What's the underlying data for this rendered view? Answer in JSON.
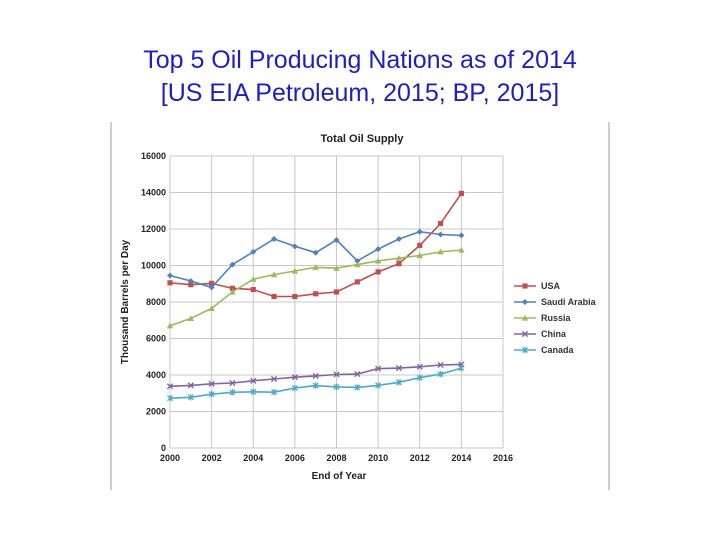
{
  "slide": {
    "title_line1": "Top 5 Oil Producing Nations as of 2014",
    "title_line2": "[US EIA Petroleum, 2015; BP, 2015]"
  },
  "chart_data": {
    "type": "line",
    "title": "Total Oil Supply",
    "xlabel": "End of Year",
    "ylabel": "Thousand Barrels per Day",
    "xlim": [
      2000,
      2016
    ],
    "ylim": [
      0,
      16000
    ],
    "x_ticks": [
      2000,
      2002,
      2004,
      2006,
      2008,
      2010,
      2012,
      2014,
      2016
    ],
    "y_ticks": [
      0,
      2000,
      4000,
      6000,
      8000,
      10000,
      12000,
      14000,
      16000
    ],
    "grid": true,
    "legend_position": "right",
    "x": [
      2000,
      2001,
      2002,
      2003,
      2004,
      2005,
      2006,
      2007,
      2008,
      2009,
      2010,
      2011,
      2012,
      2013,
      2014
    ],
    "series": [
      {
        "name": "USA",
        "color": "#c0504d",
        "marker": "square",
        "values": [
          9050,
          8950,
          9020,
          8750,
          8680,
          8300,
          8300,
          8450,
          8550,
          9100,
          9650,
          10100,
          11100,
          12300,
          13950
        ]
      },
      {
        "name": "Saudi Arabia",
        "color": "#4f81bd",
        "marker": "diamond",
        "values": [
          9450,
          9150,
          8800,
          10050,
          10750,
          11450,
          11050,
          10700,
          11400,
          10250,
          10900,
          11450,
          11850,
          11700,
          11650
        ]
      },
      {
        "name": "Russia",
        "color": "#9bbb59",
        "marker": "triangle",
        "values": [
          6700,
          7100,
          7650,
          8550,
          9250,
          9500,
          9700,
          9900,
          9850,
          10050,
          10250,
          10400,
          10550,
          10750,
          10850
        ]
      },
      {
        "name": "China",
        "color": "#8064a2",
        "marker": "x",
        "values": [
          3380,
          3430,
          3520,
          3560,
          3680,
          3780,
          3880,
          3950,
          4030,
          4050,
          4350,
          4380,
          4450,
          4550,
          4580
        ]
      },
      {
        "name": "Canada",
        "color": "#4bacc6",
        "marker": "star",
        "values": [
          2730,
          2780,
          2950,
          3050,
          3080,
          3060,
          3280,
          3420,
          3350,
          3320,
          3430,
          3600,
          3850,
          4050,
          4380
        ]
      }
    ]
  }
}
